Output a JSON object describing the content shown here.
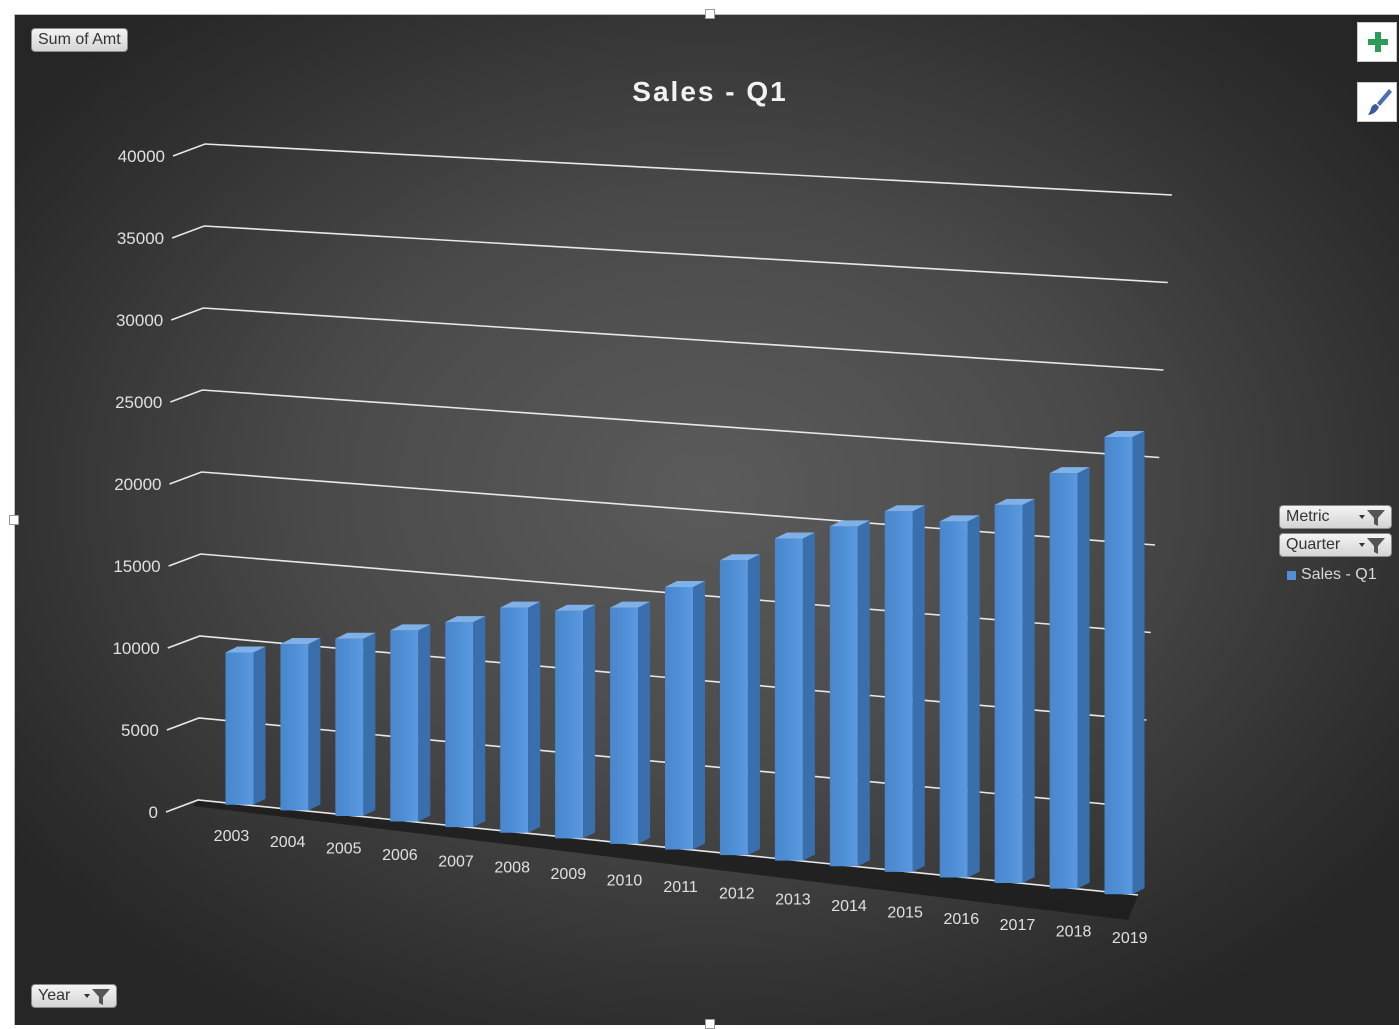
{
  "pivot_buttons": {
    "value_field": "Sum of Amt",
    "axis_field": "Year",
    "filter_fields": [
      "Metric",
      "Quarter"
    ]
  },
  "side_buttons": {
    "add_element_icon": "plus-icon",
    "style_icon": "paintbrush-icon"
  },
  "colors": {
    "bar": "#4f8fd6",
    "bar_side": "#3a6fae",
    "bar_top": "#7fb0e8",
    "grid": "#e8e8e8",
    "label": "#e0e0e0",
    "title": "#f2f2f2",
    "plus": "#2e9b5a"
  },
  "chart_data": {
    "type": "bar",
    "style": "3d-column",
    "title": "Sales - Q1",
    "categories": [
      "2003",
      "2004",
      "2005",
      "2006",
      "2007",
      "2008",
      "2009",
      "2010",
      "2011",
      "2012",
      "2013",
      "2014",
      "2015",
      "2016",
      "2017",
      "2018",
      "2019"
    ],
    "series": [
      {
        "name": "Sales - Q1",
        "values": [
          9300,
          10200,
          10900,
          11800,
          12700,
          14000,
          14200,
          14800,
          16500,
          18600,
          20400,
          21600,
          23000,
          22800,
          24300,
          26800,
          29600
        ]
      }
    ],
    "y_ticks": [
      "0",
      "5000",
      "10000",
      "15000",
      "20000",
      "25000",
      "30000",
      "35000",
      "40000"
    ],
    "ylim": [
      0,
      40000
    ],
    "grid": true,
    "legend": "right"
  }
}
